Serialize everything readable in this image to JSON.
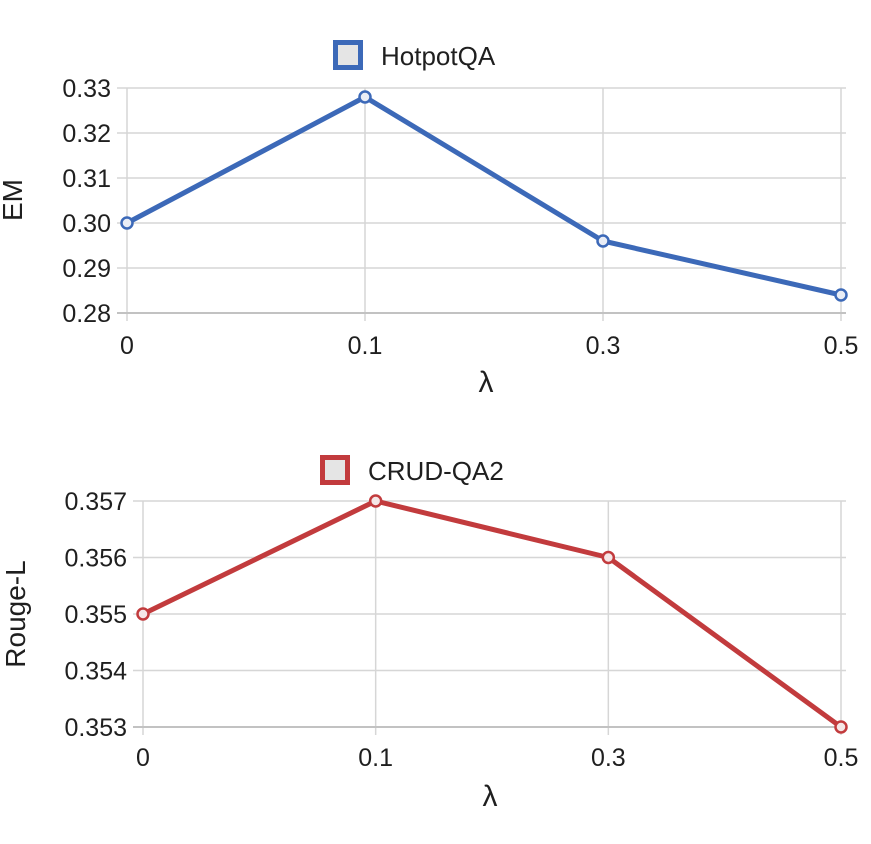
{
  "colors": {
    "hotpotqa_line": "#3c69b8",
    "crud_line": "#c23b3d",
    "grid": "#d6d6d6",
    "axis": "#c2c2c2",
    "text": "#1f1f1f",
    "legend_swatch_fill": "#e5e5e5",
    "hotpotqa_marker_fill": "#e9edf6",
    "crud_marker_fill": "#f5e7e7"
  },
  "chart_data": [
    {
      "type": "line",
      "legend": "HotpotQA",
      "xlabel": "λ",
      "ylabel": "EM",
      "x": [
        0,
        0.1,
        0.3,
        0.5
      ],
      "x_tick_labels": [
        "0",
        "0.1",
        "0.3",
        "0.5"
      ],
      "values": [
        0.3,
        0.328,
        0.296,
        0.284
      ],
      "ylim": [
        0.28,
        0.33
      ],
      "ytick_step": 0.01,
      "ytick_labels": [
        "0.28",
        "0.29",
        "0.30",
        "0.31",
        "0.32",
        "0.33"
      ],
      "grid": true,
      "legend_position": "top-center",
      "color_key": "hotpotqa_line",
      "marker_fill_key": "hotpotqa_marker_fill"
    },
    {
      "type": "line",
      "legend": "CRUD-QA2",
      "xlabel": "λ",
      "ylabel": "Rouge-L",
      "x": [
        0,
        0.1,
        0.3,
        0.5
      ],
      "x_tick_labels": [
        "0",
        "0.1",
        "0.3",
        "0.5"
      ],
      "values": [
        0.355,
        0.357,
        0.356,
        0.353
      ],
      "ylim": [
        0.353,
        0.357
      ],
      "ytick_step": 0.001,
      "ytick_labels": [
        "0.353",
        "0.354",
        "0.355",
        "0.356",
        "0.357"
      ],
      "grid": true,
      "legend_position": "top-center",
      "color_key": "crud_line",
      "marker_fill_key": "crud_marker_fill"
    }
  ]
}
